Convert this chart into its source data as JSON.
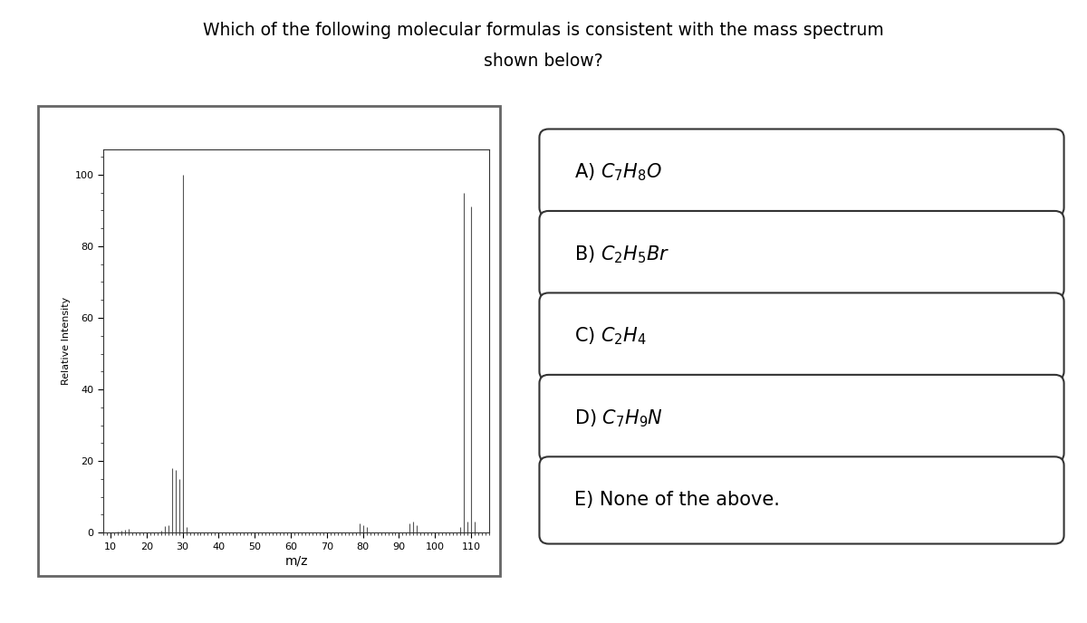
{
  "title_line1": "Which of the following molecular formulas is consistent with the mass spectrum",
  "title_line2": "shown below?",
  "title_fontsize": 13.5,
  "spectrum": {
    "peaks": [
      [
        12,
        0.4
      ],
      [
        13,
        0.5
      ],
      [
        14,
        0.8
      ],
      [
        15,
        1.0
      ],
      [
        24,
        0.5
      ],
      [
        25,
        1.8
      ],
      [
        26,
        2.2
      ],
      [
        27,
        18.0
      ],
      [
        28,
        17.5
      ],
      [
        29,
        15.0
      ],
      [
        30,
        100.0
      ],
      [
        31,
        1.5
      ],
      [
        79,
        2.5
      ],
      [
        80,
        2.0
      ],
      [
        81,
        1.5
      ],
      [
        93,
        2.5
      ],
      [
        94,
        3.0
      ],
      [
        95,
        2.0
      ],
      [
        107,
        1.5
      ],
      [
        108,
        95.0
      ],
      [
        109,
        3.0
      ],
      [
        110,
        91.0
      ],
      [
        111,
        3.0
      ]
    ],
    "xlim": [
      8,
      115
    ],
    "ylim": [
      0,
      107
    ],
    "xticks": [
      10,
      20,
      30,
      40,
      50,
      60,
      70,
      80,
      90,
      100,
      110
    ],
    "yticks": [
      0,
      20,
      40,
      60,
      80,
      100
    ],
    "xlabel": "m/z",
    "ylabel": "Relative Intensity",
    "line_color": "#555555",
    "line_width": 0.8
  },
  "options": [
    "A) $C_7H_8O$",
    "B) $C_2H_5Br$",
    "C) $C_2H_4$",
    "D) $C_7H_9N$",
    "E) None of the above."
  ],
  "box_color": "#333333",
  "box_facecolor": "#ffffff",
  "bg_color": "#ffffff",
  "option_fontsize": 15,
  "outer_box_color": "#666666"
}
